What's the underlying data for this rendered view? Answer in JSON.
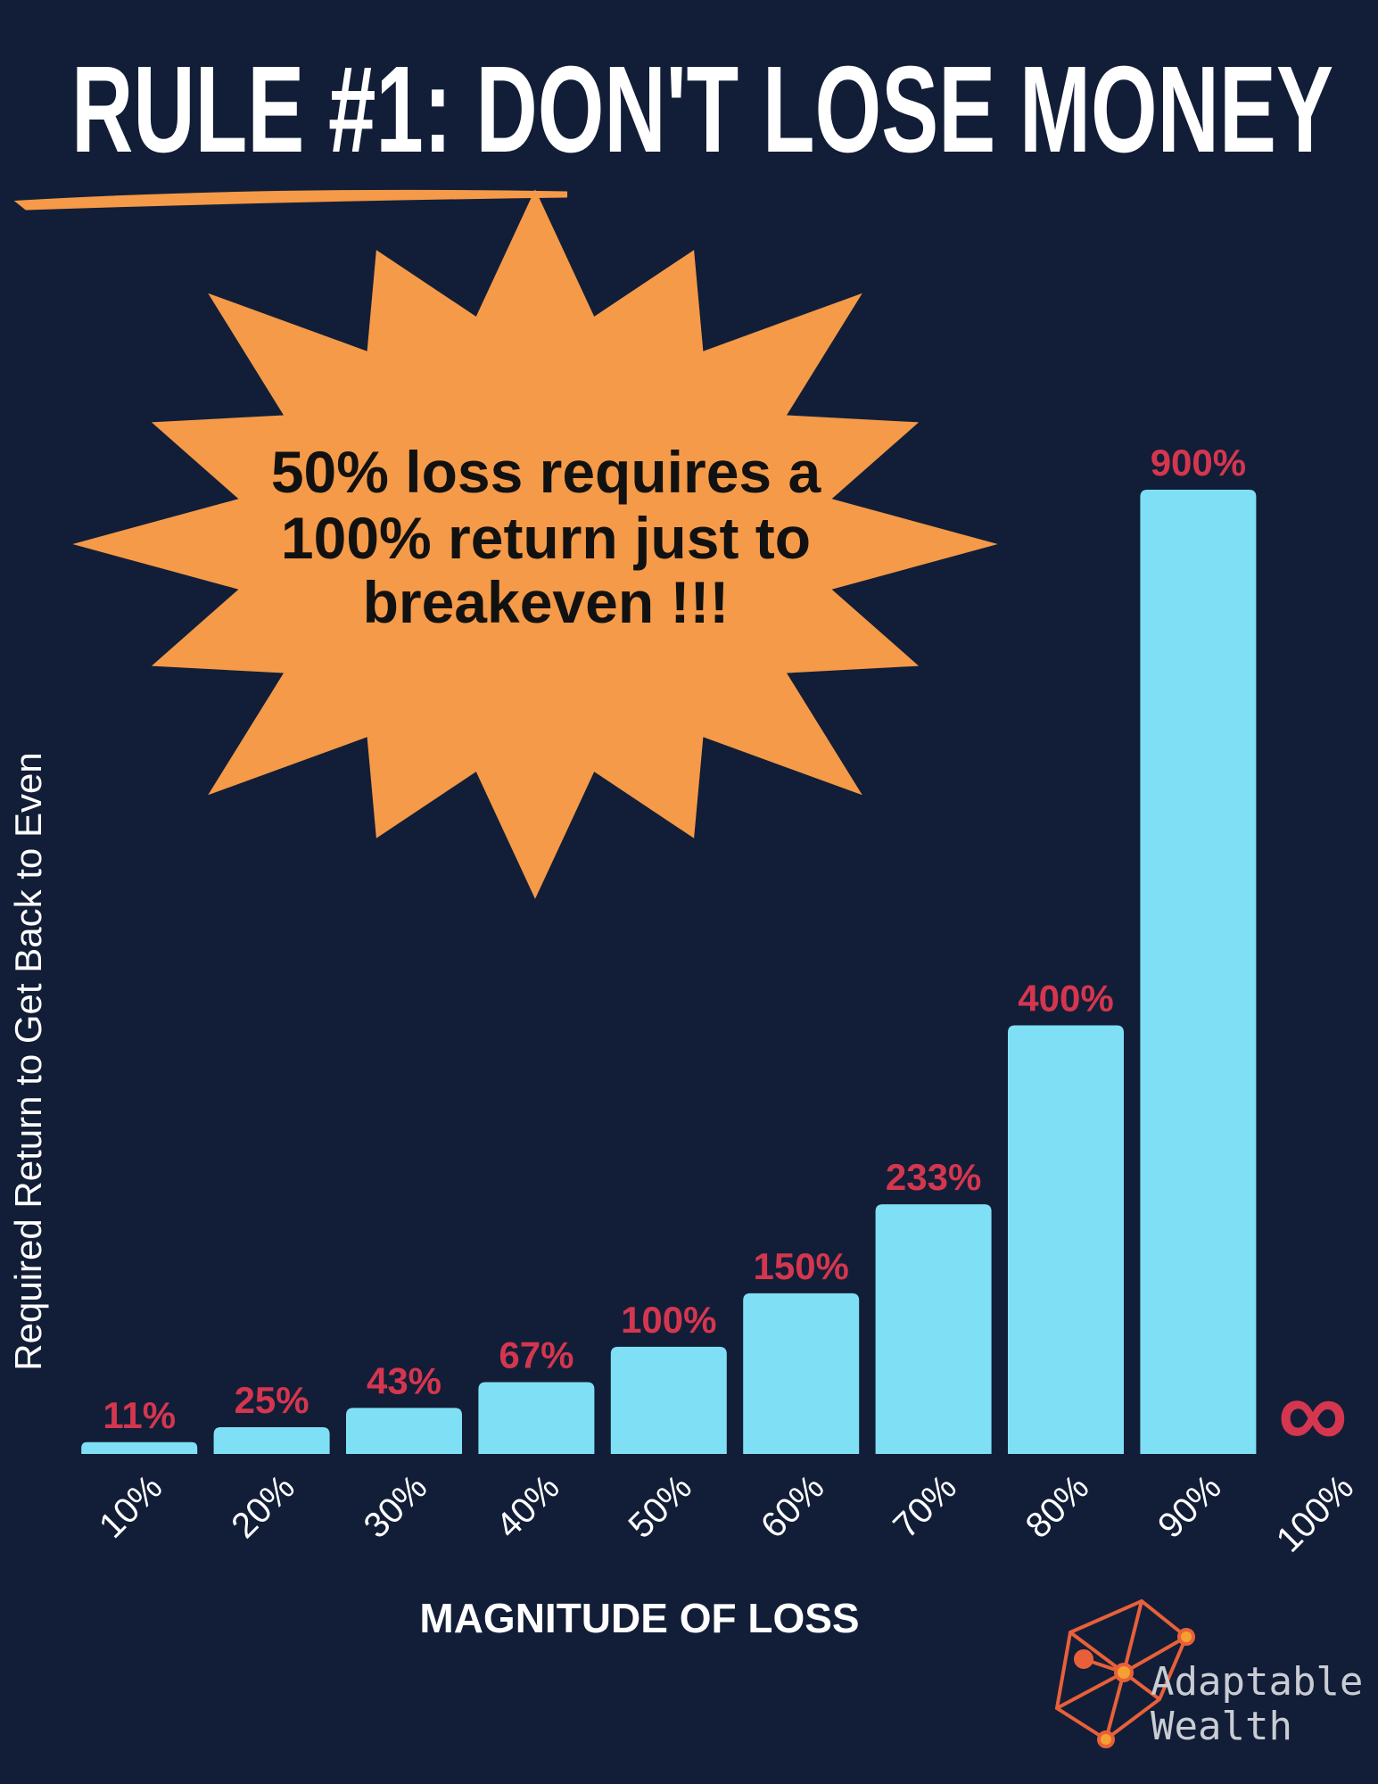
{
  "chart_data": {
    "type": "bar",
    "title": "RULE #1: DON'T LOSE MONEY",
    "annotations": [
      "50% loss requires a",
      "100% return just to",
      "breakeven !!!"
    ],
    "x_label": "MAGNITUDE OF LOSS",
    "y_label": "Required Return to Get Back to Even",
    "categories": [
      "10%",
      "20%",
      "30%",
      "40%",
      "50%",
      "60%",
      "70%",
      "80%",
      "90%",
      "100%"
    ],
    "values": [
      11,
      25,
      43,
      67,
      100,
      150,
      233,
      400,
      900,
      null
    ],
    "value_labels": [
      "11%",
      "25%",
      "43%",
      "67%",
      "100%",
      "150%",
      "233%",
      "400%",
      "900%",
      "∞"
    ],
    "color": "#7fe0f5",
    "label_color": "#d5364f",
    "ylim": [
      0,
      900
    ],
    "grid": false
  },
  "logo": {
    "line1": "Adaptable",
    "line2": "Wealth"
  }
}
